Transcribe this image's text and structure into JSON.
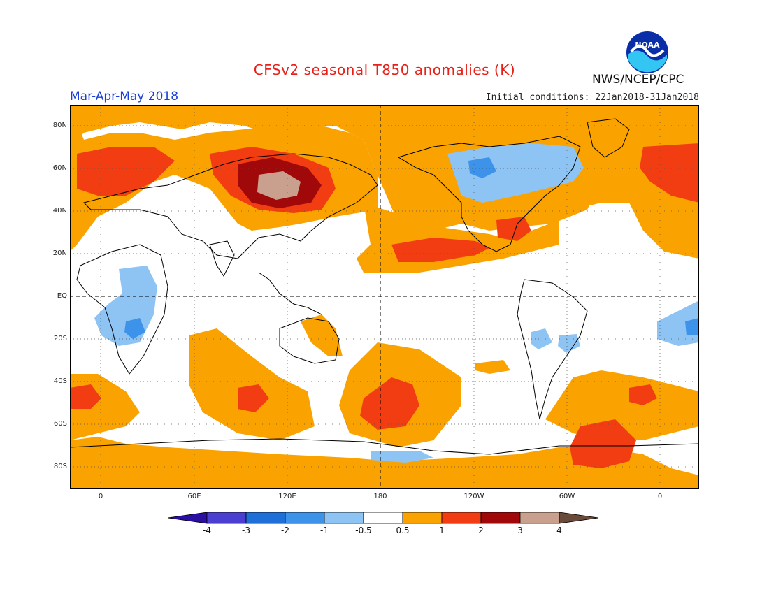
{
  "header": {
    "title": "CFSv2 seasonal T850 anomalies (K)",
    "season": "Mar-Apr-May 2018",
    "initial_conditions": "Initial conditions: 22Jan2018-31Jan2018",
    "agency": "NWS/NCEP/CPC",
    "logo_text": "NOAA"
  },
  "map": {
    "lat_labels": [
      "80N",
      "60N",
      "40N",
      "20N",
      "EQ",
      "20S",
      "40S",
      "60S",
      "80S"
    ],
    "lon_labels": [
      "0",
      "60E",
      "120E",
      "180",
      "120W",
      "60W",
      "0"
    ]
  },
  "colorbar": {
    "labels": [
      "-4",
      "-3",
      "-2",
      "-1",
      "-0.5",
      "0.5",
      "1",
      "2",
      "3",
      "4"
    ],
    "colors": [
      "#2a0fa0",
      "#4a3fd0",
      "#1f6fd8",
      "#3d92ea",
      "#8ec4f4",
      "#ffffff",
      "#f9a200",
      "#f23d12",
      "#a0080a",
      "#c9a08e",
      "#6a4a3a"
    ]
  }
}
